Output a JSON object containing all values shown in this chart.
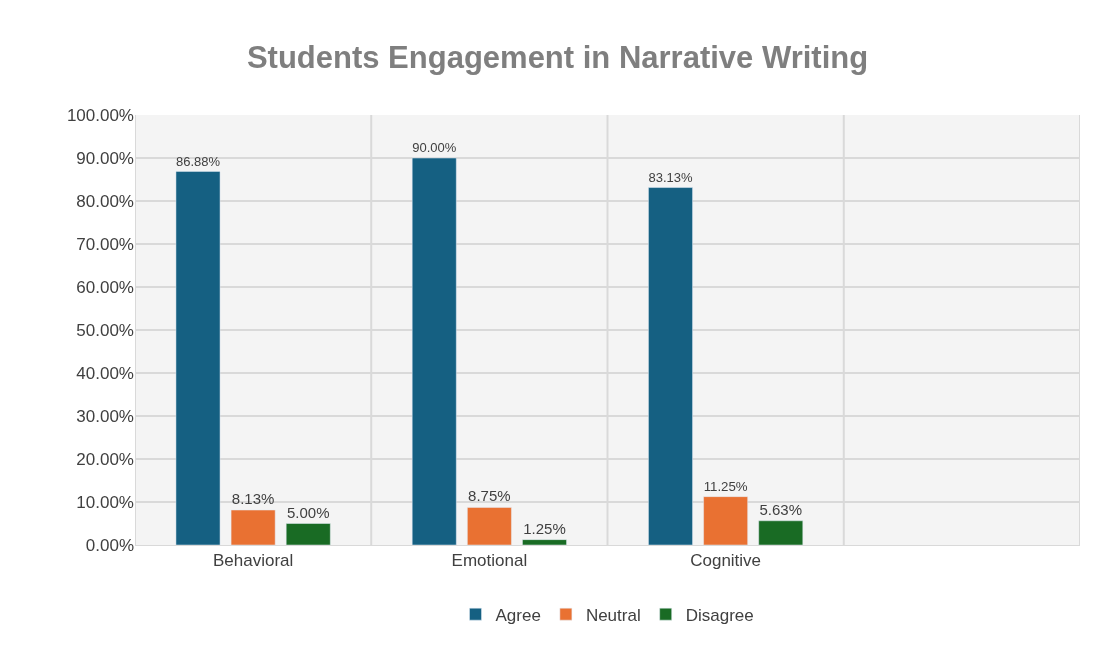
{
  "chart_data": {
    "type": "bar",
    "title": "Students Engagement in Narrative Writing",
    "categories": [
      "Behavioral",
      "Emotional",
      "Cognitive",
      null
    ],
    "series": [
      {
        "name": "Agree",
        "color": "#156082",
        "values": [
          86.88,
          90.0,
          83.13,
          null
        ],
        "value_labels": [
          "86.88%",
          "90.00%",
          "83.13%",
          null
        ]
      },
      {
        "name": "Neutral",
        "color": "#e97132",
        "values": [
          8.13,
          8.75,
          11.25,
          null
        ],
        "value_labels": [
          "8.13%",
          "8.75%",
          "11.25%",
          null
        ]
      },
      {
        "name": "Disagree",
        "color": "#196b24",
        "values": [
          5.0,
          1.25,
          5.63,
          null
        ],
        "value_labels": [
          "5.00%",
          "1.25%",
          "5.63%",
          null
        ]
      }
    ],
    "ylim": [
      0,
      100
    ],
    "yticks": [
      {
        "value": 0,
        "label": "0.00%"
      },
      {
        "value": 10,
        "label": "10.00%"
      },
      {
        "value": 20,
        "label": "20.00%"
      },
      {
        "value": 30,
        "label": "30.00%"
      },
      {
        "value": 40,
        "label": "40.00%"
      },
      {
        "value": 50,
        "label": "50.00%"
      },
      {
        "value": 60,
        "label": "60.00%"
      },
      {
        "value": 70,
        "label": "70.00%"
      },
      {
        "value": 80,
        "label": "80.00%"
      },
      {
        "value": 90,
        "label": "90.00%"
      },
      {
        "value": 100,
        "label": "100.00%"
      }
    ],
    "grid": true,
    "legend": "bottom"
  }
}
